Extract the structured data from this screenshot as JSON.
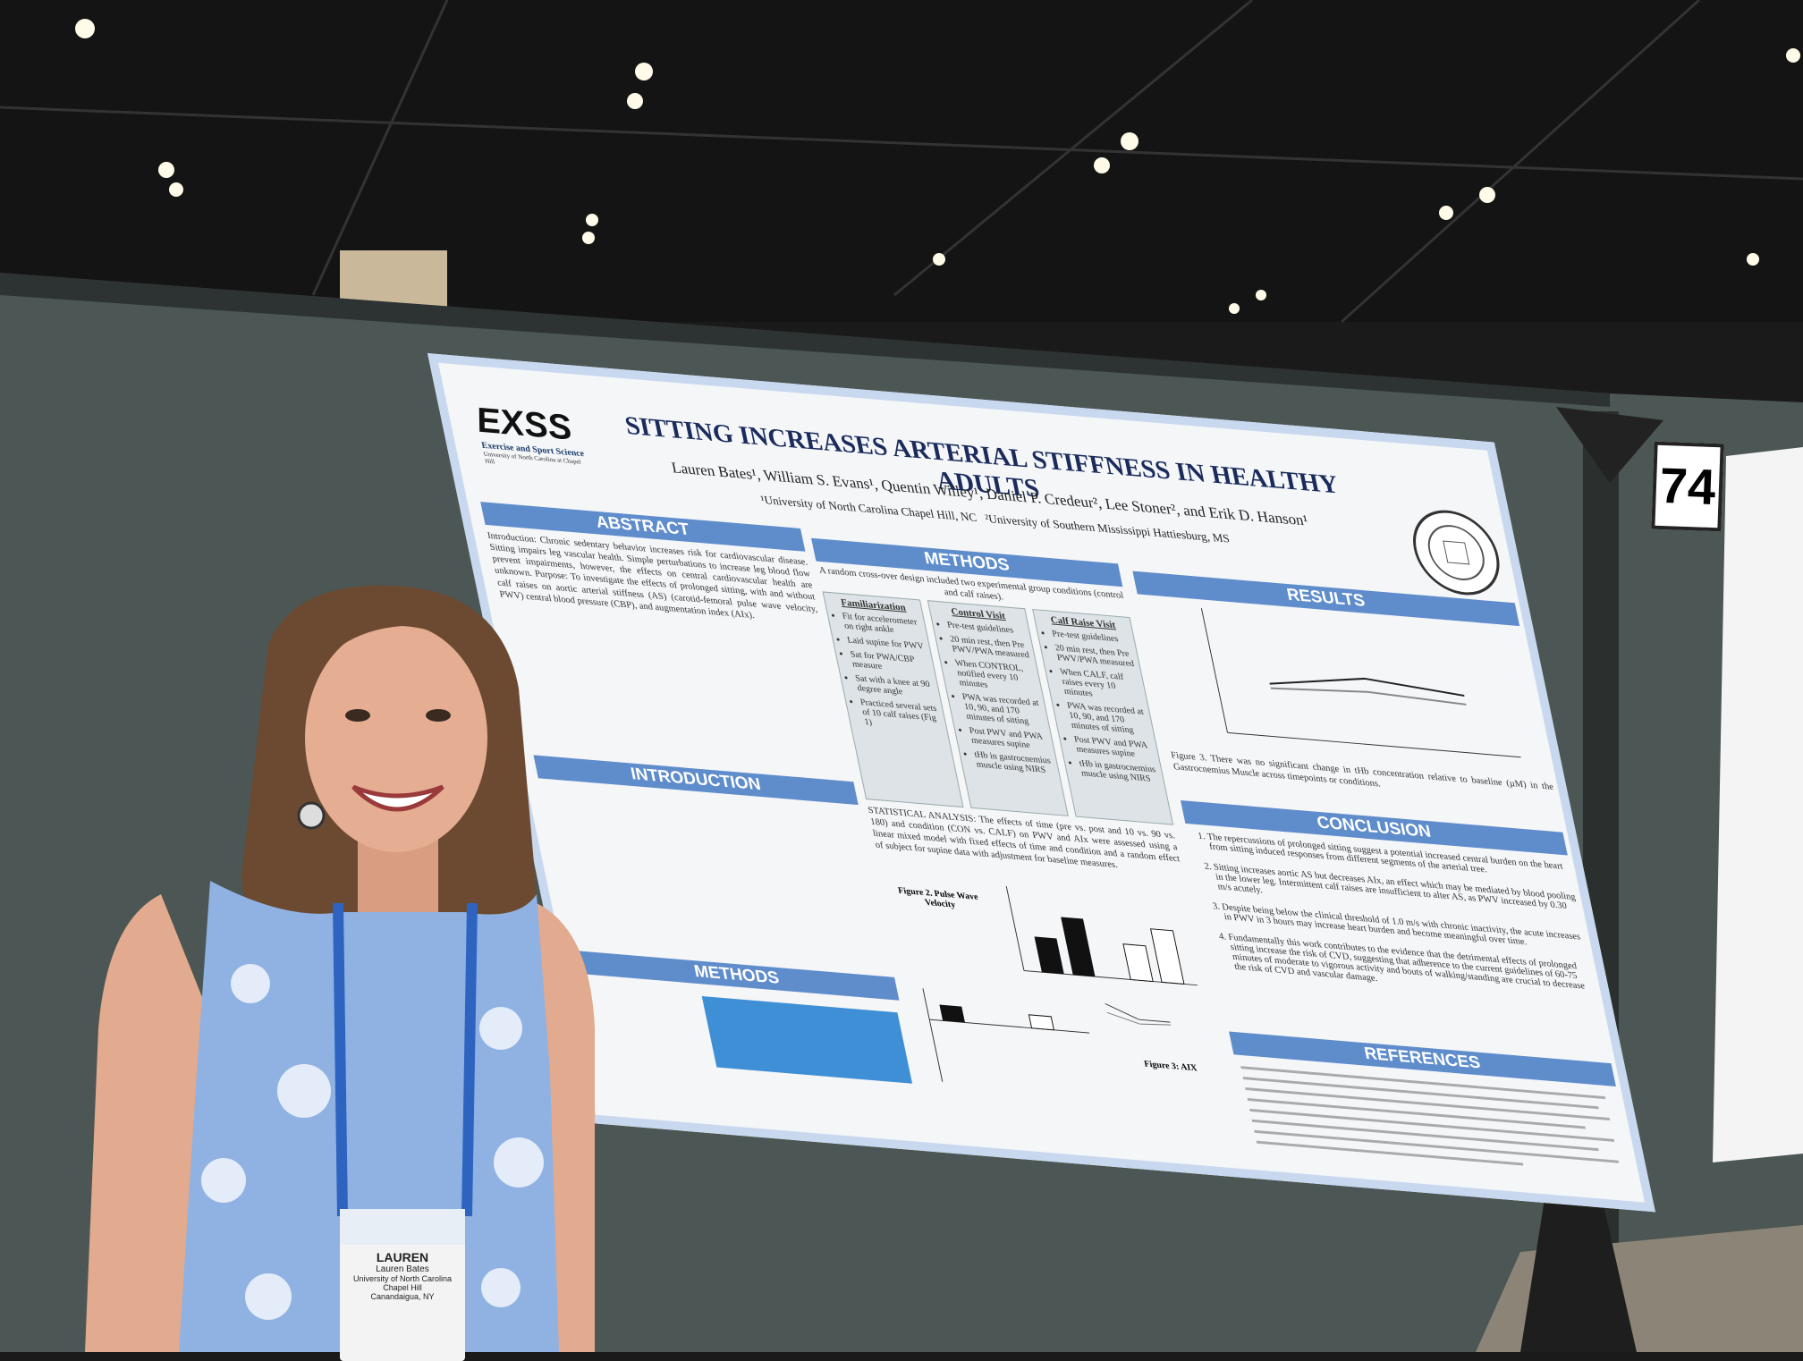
{
  "poster": {
    "logo": {
      "mark": "EXSS",
      "name": "Exercise and Sport Science",
      "university": "University of North Carolina at Chapel Hill"
    },
    "title": "SITTING INCREASES ARTERIAL STIFFNESS IN HEALTHY ADULTS",
    "authors": "Lauren Bates¹, William S. Evans¹, Quentin Willey¹, Daniel P. Credeur², Lee Stoner², and Erik D. Hanson¹",
    "affiliations": "¹University of North Carolina Chapel Hill, NC   ²University of Southern Mississippi Hattiesburg, MS",
    "abstract": {
      "heading": "ABSTRACT",
      "text": "Introduction: Chronic sedentary behavior increases risk for cardiovascular disease. Sitting impairs leg vascular health. Simple perturbations to increase leg blood flow prevent impairments, however, the effects on central cardiovascular health are unknown. Purpose: To investigate the effects of prolonged sitting, with and without calf raises on aortic arterial stiffness (AS) (carotid-femoral pulse wave velocity, PWV) central blood pressure (CBP), and augmentation index (AIx)."
    },
    "introduction": {
      "heading": "INTRODUCTION"
    },
    "methods_left": {
      "heading": "METHODS"
    },
    "methods": {
      "heading": "METHODS",
      "intro": "A random cross-over design included two experimental group conditions (control and calf raises).",
      "boxes": [
        {
          "title": "Familiarization",
          "items": [
            "Fit for accelerometer on right ankle",
            "Laid supine for PWV",
            "Sat for PWA/CBP measure",
            "Sat with a knee at 90 degree angle",
            "Practiced several sets of 10 calf raises (Fig 1)"
          ]
        },
        {
          "title": "Control Visit",
          "items": [
            "Pre-test guidelines",
            "20 min rest, then Pre PWV/PWA measured",
            "When CONTROL, notified every 10 minutes",
            "PWA was recorded at 10, 90, and 170 minutes of sitting",
            "Post PWV and PWA measures supine",
            "tHb in gastrocnemius muscle using NIRS"
          ]
        },
        {
          "title": "Calf Raise Visit",
          "items": [
            "Pre-test guidelines",
            "20 min rest, then Pre PWV/PWA measured",
            "When CALF, calf raises every 10 minutes",
            "PWA was recorded at 10, 90, and 170 minutes of sitting",
            "Post PWV and PWA measures supine",
            "tHb in gastrocnemius muscle using NIRS"
          ]
        }
      ],
      "statistics": "STATISTICAL ANALYSIS: The effects of time (pre vs. post and 10 vs. 90 vs. 180) and condition (CON vs. CALF) on PWV and AIx were assessed using a linear mixed model with fixed effects of time and condition and a random effect of subject for supine data with adjustment for baseline measures.",
      "figure_2": "Figure 2. Pulse Wave Velocity",
      "figure_3": "Figure 3: AIX"
    },
    "results": {
      "heading": "RESULTS",
      "caption": "Figure 3. There was no significant change in tHb concentration relative to baseline (µM) in the Gastrocnemius Muscle across timepoints or conditions."
    },
    "conclusion": {
      "heading": "CONCLUSION",
      "items": [
        "The repercussions of prolonged sitting suggest a potential increased central burden on the heart from sitting induced responses from different segments of the arterial tree.",
        "Sitting increases aortic AS but decreases AIx, an effect which may be mediated by blood pooling in the lower leg. Intermittent calf raises are insufficient to alter AS, as PWV increased by 0.30 m/s acutely.",
        "Despite being below the clinical threshold of 1.0 m/s with chronic inactivity, the acute increases in PWV in 3 hours may increase heart burden and become meaningful over time.",
        "Fundamentally this work contributes to the evidence that the detrimental effects of prolonged sitting increase the risk of CVD, suggesting that adherence to the current guidelines of 60-75 minutes of moderate to vigorous activity and bouts of walking/standing are crucial to decrease the risk of CVD and vascular damage."
      ]
    },
    "references": {
      "heading": "REFERENCES"
    }
  },
  "board_number": "74",
  "badge": {
    "first_name": "LAUREN",
    "full_name": "Lauren Bates",
    "affiliation": "University of North Carolina Chapel Hill",
    "hometown": "Canandaigua, NY"
  }
}
